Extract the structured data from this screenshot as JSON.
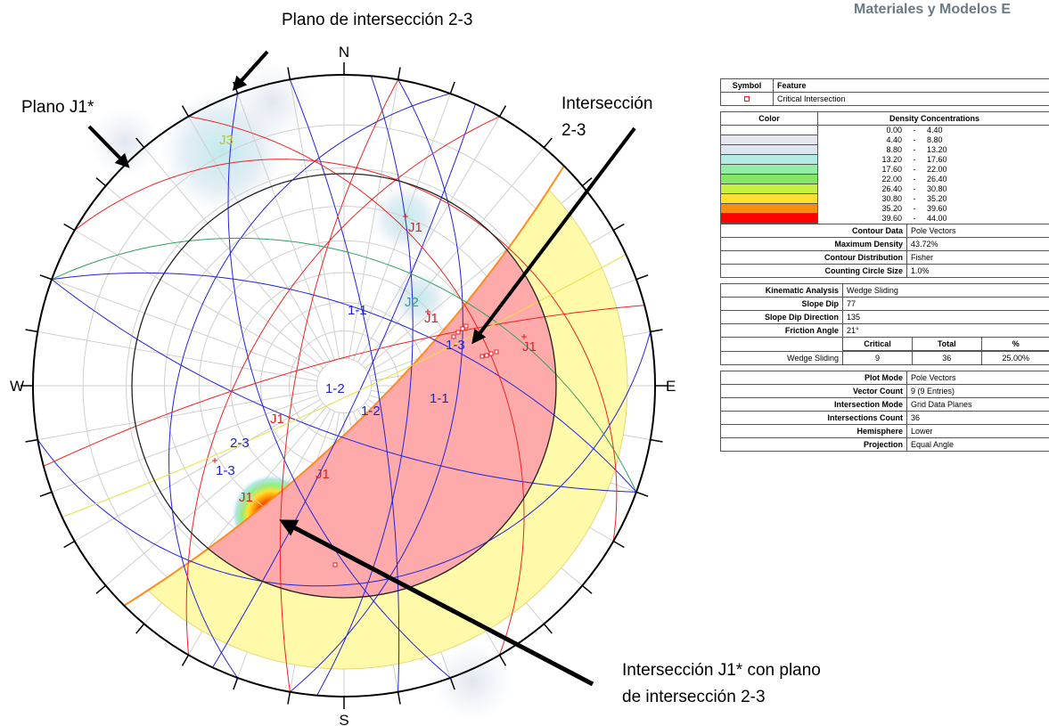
{
  "header": {
    "title": "Materiales y Modelos E"
  },
  "annotations": {
    "plane_23": "Plano de intersección 2-3",
    "plane_j1": "Plano J1*",
    "intersection_23": [
      "Intersección",
      "2-3"
    ],
    "intersection_j1": [
      "Intersección J1* con plano",
      "de intersección 2-3"
    ]
  },
  "stereonet": {
    "directions": [
      "N",
      "E",
      "S",
      "W"
    ],
    "labels": [
      "J3",
      "J1",
      "J2",
      "J1",
      "1-1",
      "1-3",
      "J1",
      "1-2",
      "1-2",
      "1-1",
      "J1",
      "2-3",
      "1-3",
      "J1",
      "J1"
    ]
  },
  "legend": {
    "symbol_table": {
      "headers": [
        "Symbol",
        "Feature"
      ],
      "rows": [
        [
          "Critical Intersection"
        ]
      ]
    },
    "density": {
      "headers": [
        "Color",
        "Density Concentrations"
      ],
      "rows": [
        [
          "0.00",
          "-",
          "4.40"
        ],
        [
          "4.40",
          "-",
          "8.80"
        ],
        [
          "8.80",
          "-",
          "13.20"
        ],
        [
          "13.20",
          "-",
          "17.60"
        ],
        [
          "17.60",
          "-",
          "22.00"
        ],
        [
          "22.00",
          "-",
          "26.40"
        ],
        [
          "26.40",
          "-",
          "30.80"
        ],
        [
          "30.80",
          "-",
          "35.20"
        ],
        [
          "35.20",
          "-",
          "39.60"
        ],
        [
          "39.60",
          "-",
          "44.00"
        ]
      ]
    },
    "contour": [
      [
        "Contour Data",
        "Pole Vectors"
      ],
      [
        "Maximum Density",
        "43.72%"
      ],
      [
        "Contour Distribution",
        "Fisher"
      ],
      [
        "Counting Circle Size",
        "1.0%"
      ]
    ],
    "kinematic": [
      [
        "Kinematic Analysis",
        "Wedge Sliding"
      ],
      [
        "Slope Dip",
        "77"
      ],
      [
        "Slope Dip Direction",
        "135"
      ],
      [
        "Friction Angle",
        "21°"
      ]
    ],
    "results": {
      "headers": [
        "Critical",
        "Total",
        "%"
      ],
      "rows": [
        [
          "Wedge Sliding",
          "9",
          "36",
          "25.00%"
        ]
      ]
    },
    "plot": [
      [
        "Plot Mode",
        "Pole Vectors"
      ],
      [
        "Vector Count",
        "9 (9 Entries)"
      ],
      [
        "Intersection Mode",
        "Grid Data Planes"
      ],
      [
        "Intersections Count",
        "36"
      ],
      [
        "Hemisphere",
        "Lower"
      ],
      [
        "Projection",
        "Equal Angle"
      ]
    ]
  }
}
